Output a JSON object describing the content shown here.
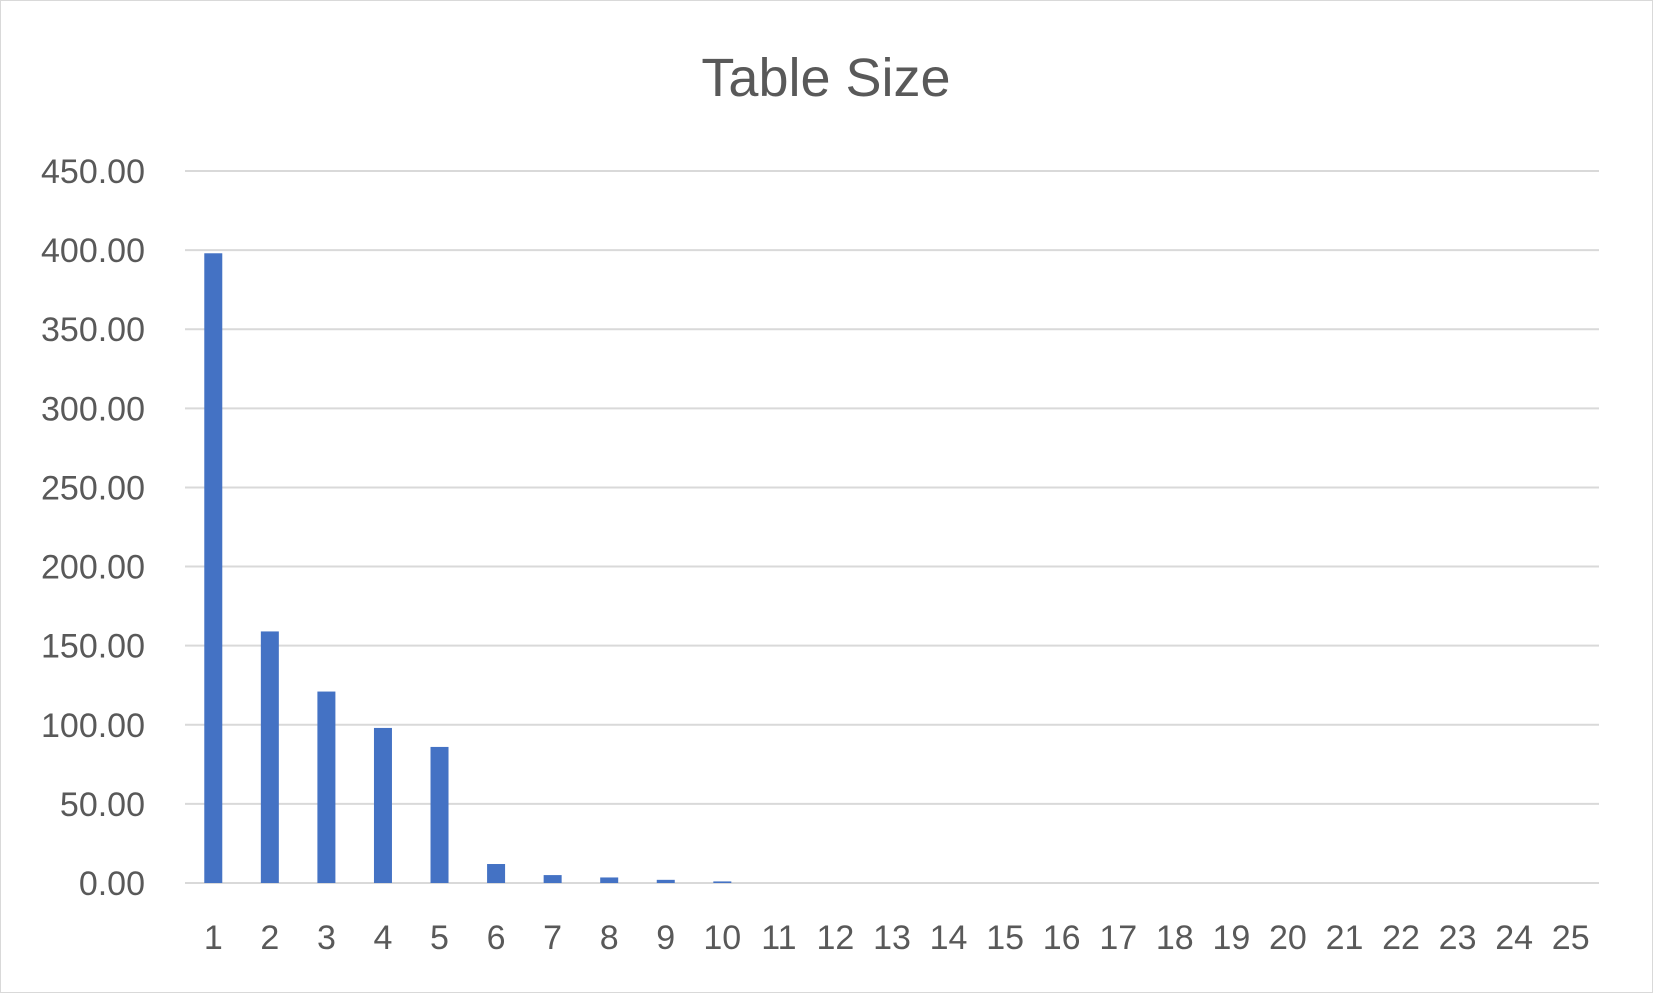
{
  "chart_data": {
    "type": "bar",
    "title": "Table Size",
    "xlabel": "",
    "ylabel": "",
    "categories": [
      "1",
      "2",
      "3",
      "4",
      "5",
      "6",
      "7",
      "8",
      "9",
      "10",
      "11",
      "12",
      "13",
      "14",
      "15",
      "16",
      "17",
      "18",
      "19",
      "20",
      "21",
      "22",
      "23",
      "24",
      "25"
    ],
    "values": [
      398,
      159,
      121,
      98,
      86,
      12,
      5,
      3.5,
      2,
      1,
      0,
      0,
      0,
      0,
      0,
      0,
      0,
      0,
      0,
      0,
      0,
      0,
      0,
      0,
      0
    ],
    "ylim": [
      0,
      450
    ],
    "yticks": [
      "0.00",
      "50.00",
      "100.00",
      "150.00",
      "200.00",
      "250.00",
      "300.00",
      "350.00",
      "400.00",
      "450.00"
    ],
    "grid": true,
    "legend": "none",
    "bar_color": "#4472c4"
  }
}
